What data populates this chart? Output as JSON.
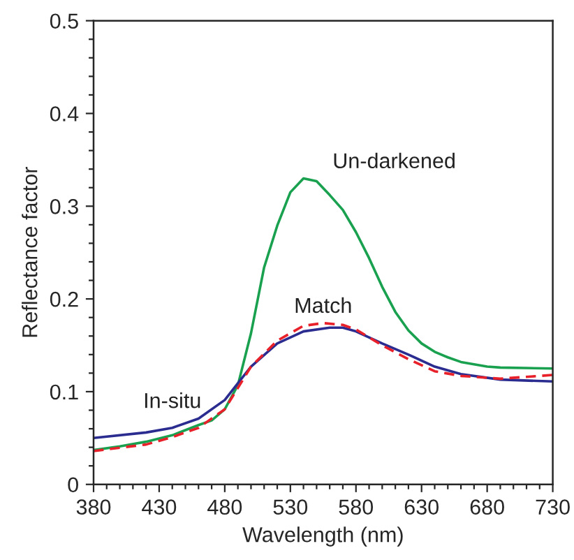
{
  "chart_data": {
    "type": "line",
    "xlabel": "Wavelength (nm)",
    "ylabel": "Reflectance factor",
    "xlim": [
      380,
      730
    ],
    "ylim": [
      0,
      0.5
    ],
    "xticks": [
      380,
      {
        "value": 390,
        "label": null
      },
      {
        "value": 400,
        "label": null
      },
      {
        "value": 410,
        "label": null
      },
      {
        "value": 420,
        "label": null
      },
      430,
      {
        "value": 440,
        "label": null
      },
      {
        "value": 450,
        "label": null
      },
      {
        "value": 460,
        "label": null
      },
      {
        "value": 470,
        "label": null
      },
      480,
      {
        "value": 490,
        "label": null
      },
      {
        "value": 500,
        "label": null
      },
      {
        "value": 510,
        "label": null
      },
      {
        "value": 520,
        "label": null
      },
      530,
      {
        "value": 540,
        "label": null
      },
      {
        "value": 550,
        "label": null
      },
      {
        "value": 560,
        "label": null
      },
      {
        "value": 570,
        "label": null
      },
      580,
      {
        "value": 590,
        "label": null
      },
      {
        "value": 600,
        "label": null
      },
      {
        "value": 610,
        "label": null
      },
      {
        "value": 620,
        "label": null
      },
      630,
      {
        "value": 640,
        "label": null
      },
      {
        "value": 650,
        "label": null
      },
      {
        "value": 660,
        "label": null
      },
      {
        "value": 670,
        "label": null
      },
      680,
      {
        "value": 690,
        "label": null
      },
      {
        "value": 700,
        "label": null
      },
      {
        "value": 710,
        "label": null
      },
      {
        "value": 720,
        "label": null
      },
      730
    ],
    "yticks": [
      0,
      {
        "value": 0.02,
        "label": null
      },
      {
        "value": 0.04,
        "label": null
      },
      {
        "value": 0.06,
        "label": null
      },
      {
        "value": 0.08,
        "label": null
      },
      0.1,
      {
        "value": 0.12,
        "label": null
      },
      {
        "value": 0.14,
        "label": null
      },
      {
        "value": 0.16,
        "label": null
      },
      {
        "value": 0.18,
        "label": null
      },
      0.2,
      {
        "value": 0.22,
        "label": null
      },
      {
        "value": 0.24,
        "label": null
      },
      {
        "value": 0.26,
        "label": null
      },
      {
        "value": 0.28,
        "label": null
      },
      0.3,
      {
        "value": 0.32,
        "label": null
      },
      {
        "value": 0.34,
        "label": null
      },
      {
        "value": 0.36,
        "label": null
      },
      {
        "value": 0.38,
        "label": null
      },
      0.4,
      {
        "value": 0.42,
        "label": null
      },
      {
        "value": 0.44,
        "label": null
      },
      {
        "value": 0.46,
        "label": null
      },
      {
        "value": 0.48,
        "label": null
      },
      0.5
    ],
    "grid": false,
    "legend": false,
    "series": [
      {
        "name": "Un-darkened",
        "color": "#1aa150",
        "line_style": "solid",
        "x": [
          380,
          400,
          420,
          440,
          460,
          470,
          480,
          490,
          500,
          510,
          520,
          530,
          540,
          550,
          560,
          570,
          580,
          590,
          600,
          610,
          620,
          630,
          640,
          650,
          660,
          680,
          690,
          730
        ],
        "values": [
          0.037,
          0.041,
          0.046,
          0.053,
          0.064,
          0.069,
          0.081,
          0.107,
          0.163,
          0.234,
          0.279,
          0.315,
          0.33,
          0.327,
          0.312,
          0.296,
          0.272,
          0.244,
          0.213,
          0.186,
          0.166,
          0.152,
          0.143,
          0.137,
          0.132,
          0.127,
          0.126,
          0.125
        ]
      },
      {
        "name": "In-situ",
        "color": "#2b2c8f",
        "line_style": "solid",
        "x": [
          380,
          420,
          440,
          460,
          480,
          490,
          500,
          520,
          540,
          560,
          570,
          580,
          600,
          620,
          640,
          660,
          690,
          730
        ],
        "values": [
          0.05,
          0.056,
          0.061,
          0.071,
          0.091,
          0.109,
          0.127,
          0.152,
          0.165,
          0.169,
          0.169,
          0.165,
          0.152,
          0.14,
          0.127,
          0.119,
          0.113,
          0.111
        ]
      },
      {
        "name": "Match",
        "color": "#e8202a",
        "line_style": "dashed",
        "x": [
          380,
          420,
          440,
          460,
          480,
          490,
          500,
          520,
          540,
          555,
          570,
          580,
          600,
          620,
          640,
          660,
          690,
          730
        ],
        "values": [
          0.036,
          0.043,
          0.051,
          0.061,
          0.081,
          0.104,
          0.127,
          0.155,
          0.171,
          0.174,
          0.172,
          0.167,
          0.15,
          0.135,
          0.122,
          0.117,
          0.114,
          0.118
        ]
      }
    ]
  }
}
